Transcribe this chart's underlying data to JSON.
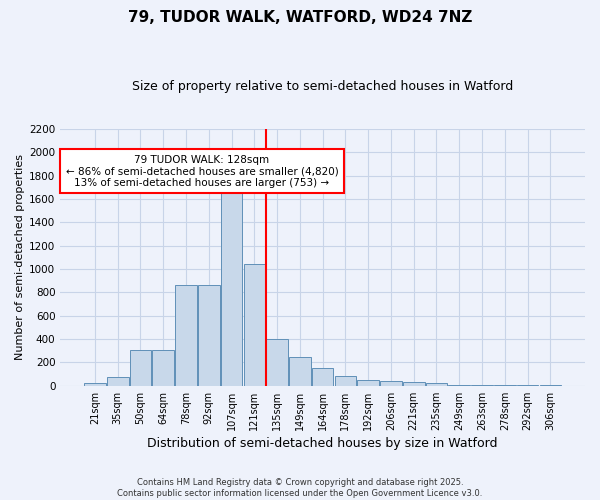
{
  "title": "79, TUDOR WALK, WATFORD, WD24 7NZ",
  "subtitle": "Size of property relative to semi-detached houses in Watford",
  "xlabel": "Distribution of semi-detached houses by size in Watford",
  "ylabel": "Number of semi-detached properties",
  "categories": [
    "21sqm",
    "35sqm",
    "50sqm",
    "64sqm",
    "78sqm",
    "92sqm",
    "107sqm",
    "121sqm",
    "135sqm",
    "149sqm",
    "164sqm",
    "178sqm",
    "192sqm",
    "206sqm",
    "221sqm",
    "235sqm",
    "249sqm",
    "263sqm",
    "278sqm",
    "292sqm",
    "306sqm"
  ],
  "values": [
    20,
    75,
    310,
    310,
    860,
    860,
    1700,
    1040,
    400,
    250,
    150,
    80,
    50,
    45,
    35,
    20,
    10,
    5,
    5,
    3,
    10
  ],
  "bar_color": "#c8d8ea",
  "bar_edge_color": "#6090b8",
  "vline_color": "red",
  "annotation_text": "79 TUDOR WALK: 128sqm\n← 86% of semi-detached houses are smaller (4,820)\n13% of semi-detached houses are larger (753) →",
  "annotation_box_color": "white",
  "annotation_box_edge_color": "red",
  "ylim": [
    0,
    2200
  ],
  "yticks": [
    0,
    200,
    400,
    600,
    800,
    1000,
    1200,
    1400,
    1600,
    1800,
    2000,
    2200
  ],
  "grid_color": "#c8d4e8",
  "background_color": "#eef2fb",
  "footer": "Contains HM Land Registry data © Crown copyright and database right 2025.\nContains public sector information licensed under the Open Government Licence v3.0.",
  "title_fontsize": 11,
  "subtitle_fontsize": 9,
  "ylabel_fontsize": 8,
  "xlabel_fontsize": 9,
  "bar_width": 0.95
}
